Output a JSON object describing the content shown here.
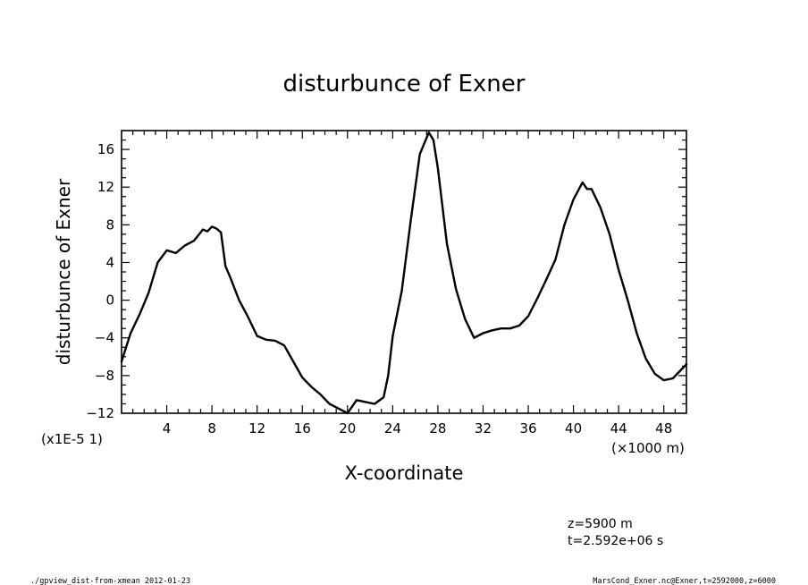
{
  "chart_data": {
    "type": "line",
    "title": "disturbunce of Exner",
    "xlabel": "X-coordinate",
    "ylabel": "disturbunce of Exner",
    "x_unit_label": "(×1000 m)",
    "y_unit_label": "(x1E-5 1)",
    "xlim": [
      0,
      50
    ],
    "ylim": [
      -12,
      18
    ],
    "x_ticks": [
      4,
      8,
      12,
      16,
      20,
      24,
      28,
      32,
      36,
      40,
      44,
      48
    ],
    "y_ticks": [
      -12,
      -8,
      -4,
      0,
      4,
      8,
      12,
      16
    ],
    "grid": false,
    "series": [
      {
        "x": [
          0,
          0.8,
          1.6,
          2.4,
          3.2,
          4.0,
          4.8,
          5.6,
          6.4,
          7.2,
          7.6,
          8.0,
          8.4,
          8.8,
          9.2,
          9.6,
          10.4,
          11.2,
          12.0,
          12.8,
          13.6,
          14.4,
          15.2,
          16.0,
          16.8,
          17.6,
          18.4,
          19.2,
          20.0,
          20.8,
          21.6,
          22.4,
          23.2,
          23.6,
          24.0,
          24.8,
          25.6,
          26.4,
          27.2,
          27.6,
          28.0,
          28.8,
          29.6,
          30.4,
          31.2,
          32.0,
          32.8,
          33.6,
          34.4,
          35.2,
          36.0,
          36.8,
          37.6,
          38.4,
          39.2,
          40.0,
          40.8,
          41.2,
          41.6,
          42.4,
          43.2,
          44.0,
          44.8,
          45.6,
          46.4,
          47.2,
          48.0,
          48.8,
          49.6,
          50.0
        ],
        "y": [
          -6.5,
          -3.5,
          -1.5,
          0.8,
          4.0,
          5.3,
          5.0,
          5.8,
          6.3,
          7.5,
          7.3,
          7.8,
          7.6,
          7.2,
          3.6,
          2.5,
          0.0,
          -1.8,
          -3.8,
          -4.2,
          -4.3,
          -4.8,
          -6.5,
          -8.2,
          -9.2,
          -10.0,
          -11.0,
          -11.5,
          -12.0,
          -10.6,
          -10.8,
          -11.0,
          -10.3,
          -8.0,
          -3.8,
          1.0,
          8.5,
          15.5,
          17.8,
          17.0,
          14.0,
          6.0,
          1.2,
          -2.0,
          -4.0,
          -3.5,
          -3.2,
          -3.0,
          -3.0,
          -2.7,
          -1.7,
          0.2,
          2.2,
          4.3,
          8.0,
          10.7,
          12.5,
          11.8,
          11.8,
          9.8,
          7.0,
          3.2,
          0.0,
          -3.5,
          -6.2,
          -7.8,
          -8.5,
          -8.3,
          -7.3,
          -6.8
        ]
      }
    ],
    "annotations": [
      "z=5900 m",
      "t=2.592e+06 s"
    ]
  },
  "footer": {
    "left": "./gpview_dist-from-xmean  2012-01-23",
    "right": "MarsCond_Exner.nc@Exner,t=2592000,z=6000"
  }
}
